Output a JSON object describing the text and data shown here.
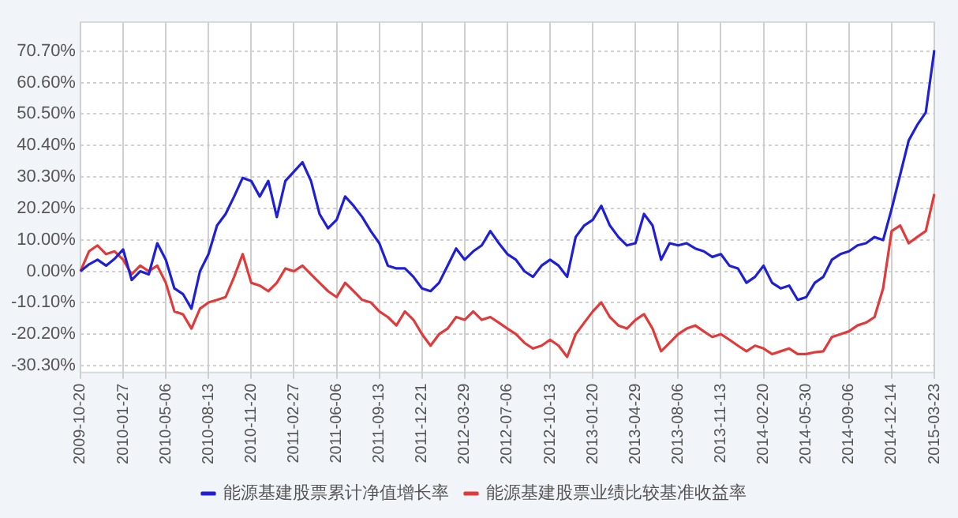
{
  "chart_data": {
    "type": "line",
    "categories": [
      "2009-10-20",
      null,
      null,
      null,
      null,
      "2010-01-27",
      null,
      null,
      null,
      null,
      "2010-05-06",
      null,
      null,
      null,
      null,
      "2010-08-13",
      null,
      null,
      null,
      null,
      "2010-11-20",
      null,
      null,
      null,
      null,
      "2011-02-27",
      null,
      null,
      null,
      null,
      "2011-06-06",
      null,
      null,
      null,
      null,
      "2011-09-13",
      null,
      null,
      null,
      null,
      "2011-12-21",
      null,
      null,
      null,
      null,
      "2012-03-29",
      null,
      null,
      null,
      null,
      "2012-07-06",
      null,
      null,
      null,
      null,
      "2012-10-13",
      null,
      null,
      null,
      null,
      "2013-01-20",
      null,
      null,
      null,
      null,
      "2013-04-29",
      null,
      null,
      null,
      null,
      "2013-08-06",
      null,
      null,
      null,
      null,
      "2013-11-13",
      null,
      null,
      null,
      null,
      "2014-02-20",
      null,
      null,
      null,
      null,
      "2014-05-30",
      null,
      null,
      null,
      null,
      "2014-09-06",
      null,
      null,
      null,
      null,
      "2014-12-14",
      null,
      null,
      null,
      null,
      "2015-03-23"
    ],
    "series": [
      {
        "name": "能源基建股票累计净值增长率",
        "color": "#1f1fd6",
        "values": [
          0,
          2.2,
          3.7,
          1.8,
          4,
          7,
          -2.8,
          0,
          -1,
          9,
          3.7,
          -5.5,
          -7.3,
          -12,
          0,
          5.5,
          14.7,
          18.4,
          24,
          30,
          29,
          24,
          29,
          17.4,
          29,
          32,
          35,
          29,
          18.4,
          13.8,
          16.5,
          24,
          21,
          17.4,
          12.9,
          9,
          1.8,
          0.9,
          0.9,
          -1.8,
          -5.5,
          -6.4,
          -3.7,
          1.8,
          7.3,
          3.7,
          6.4,
          8.3,
          12.9,
          9,
          5.5,
          3.7,
          0,
          -1.8,
          1.8,
          3.7,
          1.8,
          -1.8,
          11,
          14.7,
          16.5,
          21,
          14.7,
          11,
          8.3,
          9,
          18.4,
          14.7,
          3.7,
          9,
          8.3,
          9,
          7.3,
          6.4,
          4.6,
          5.5,
          1.8,
          0.9,
          -3.7,
          -1.8,
          1.8,
          -3.7,
          -5.5,
          -4.6,
          -9.2,
          -8.3,
          -3.7,
          -1.8,
          3.7,
          5.5,
          6.4,
          8.3,
          9,
          11,
          10,
          20,
          31,
          42,
          47,
          51,
          71
        ]
      },
      {
        "name": "能源基建股票业绩比较基准收益率",
        "color": "#e03a3a",
        "values": [
          0,
          6.4,
          8.3,
          5.5,
          6.4,
          3.7,
          -1,
          1.8,
          0,
          1.8,
          -3.7,
          -12.9,
          -13.8,
          -18.4,
          -12,
          -10,
          -9.2,
          -8.3,
          -1.8,
          5.5,
          -3.7,
          -4.6,
          -6.4,
          -3.7,
          0.9,
          0,
          1.8,
          -1,
          -3.7,
          -6.4,
          -8.3,
          -3.7,
          -6.4,
          -9.2,
          -10,
          -12.9,
          -14.7,
          -17.4,
          -12.9,
          -15.6,
          -20.2,
          -23.9,
          -20.2,
          -18.4,
          -14.7,
          -15.6,
          -12.9,
          -15.6,
          -14.7,
          -16.5,
          -18.4,
          -20.2,
          -23,
          -24.8,
          -23.9,
          -22,
          -23.9,
          -27.5,
          -20.2,
          -16.5,
          -12.9,
          -10,
          -14.7,
          -17.4,
          -18.4,
          -15.6,
          -13.8,
          -18.4,
          -25.7,
          -23,
          -20.2,
          -18.4,
          -17.4,
          -19.3,
          -21.1,
          -20.2,
          -22,
          -23.9,
          -25.7,
          -23.9,
          -24.8,
          -26.6,
          -25.7,
          -24.8,
          -26.6,
          -26.6,
          -26,
          -25.7,
          -21.1,
          -20.2,
          -19.3,
          -17.4,
          -16.5,
          -14.7,
          -5.5,
          12.9,
          14.7,
          9,
          11,
          12.9,
          24.8
        ]
      }
    ],
    "ylim": [
      -32.5,
      80
    ],
    "yticks": [
      {
        "value": 70.7,
        "label": "70.70%"
      },
      {
        "value": 60.6,
        "label": "60.60%"
      },
      {
        "value": 50.5,
        "label": "50.50%"
      },
      {
        "value": 40.4,
        "label": "40.40%"
      },
      {
        "value": 30.3,
        "label": "30.30%"
      },
      {
        "value": 20.2,
        "label": "20.20%"
      },
      {
        "value": 10,
        "label": "10.00%"
      },
      {
        "value": 0,
        "label": "0.00%"
      },
      {
        "value": -10.1,
        "label": "-10.10%"
      },
      {
        "value": -20.2,
        "label": "-20.20%"
      },
      {
        "value": -30.3,
        "label": "-30.30%"
      }
    ],
    "grid": true,
    "legend": "bottom",
    "marker": "none",
    "line_style": "solid"
  }
}
